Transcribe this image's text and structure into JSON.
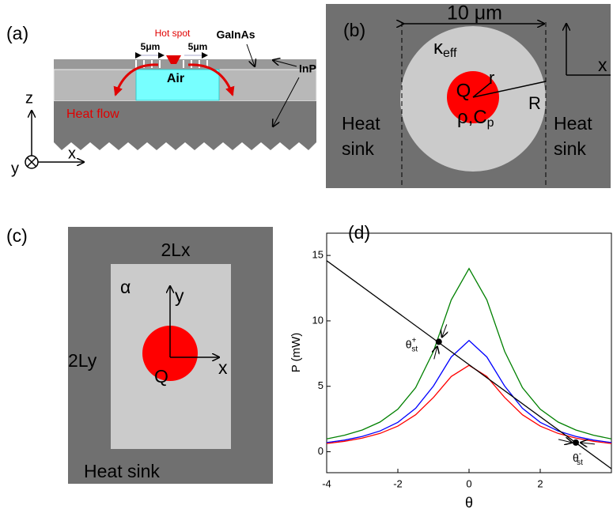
{
  "panel_a": {
    "label": "(a)",
    "hot_spot": "Hot spot",
    "layer_top": "GaInAs",
    "width_left": "5μm",
    "width_right": "5μm",
    "air": "Air",
    "substrate": "InP",
    "heat_flow": "Heat flow",
    "axis_z": "z",
    "axis_x": "x",
    "axis_y": "y"
  },
  "panel_b": {
    "label": "(b)",
    "width": "10 μm",
    "kappa": {
      "symbol": "κ",
      "sub": "eff"
    },
    "source": "Q",
    "radius_r": "r",
    "radius_R": "R",
    "rho": {
      "text": "ρ,C",
      "sub": "p"
    },
    "heat_sink_left": [
      "Heat",
      "sink"
    ],
    "heat_sink_right": [
      "Heat",
      "sink"
    ],
    "axis_x": "x"
  },
  "panel_c": {
    "label": "(c)",
    "width": "2Lx",
    "alpha": "α",
    "axis_y": "y",
    "axis_x": "x",
    "height": "2Ly",
    "source": "Q",
    "heat_sink": "Heat sink"
  },
  "chart_data": {
    "type": "line",
    "label": "(d)",
    "xlabel": "θ",
    "ylabel": "P (mW)",
    "xlim": [
      -4,
      4
    ],
    "ylim": [
      -1.6,
      16.7
    ],
    "xticks": [
      -4,
      -2,
      0,
      2
    ],
    "yticks": [
      0,
      5,
      10,
      15
    ],
    "x": [
      -4,
      -3.5,
      -3,
      -2.5,
      -2,
      -1.5,
      -1,
      -0.5,
      0,
      0.5,
      1,
      1.5,
      2,
      2.5,
      3,
      3.5,
      4
    ],
    "series": [
      {
        "color": "#008000",
        "values": [
          0.98,
          1.26,
          1.66,
          2.27,
          3.25,
          4.9,
          7.67,
          11.6,
          14,
          11.6,
          7.67,
          4.9,
          3.25,
          2.27,
          1.66,
          1.26,
          0.98
        ]
      },
      {
        "color": "#0000ff",
        "values": [
          0.7,
          0.89,
          1.17,
          1.59,
          2.25,
          3.32,
          5.02,
          7.24,
          8.5,
          7.24,
          5.02,
          3.32,
          2.25,
          1.59,
          1.17,
          0.89,
          0.7
        ]
      },
      {
        "color": "#ff0000",
        "values": [
          0.63,
          0.8,
          1.04,
          1.4,
          1.96,
          2.83,
          4.15,
          5.75,
          6.6,
          5.75,
          4.15,
          2.83,
          1.96,
          1.4,
          1.04,
          0.8,
          0.63
        ]
      }
    ],
    "line": {
      "color": "#000000",
      "x": [
        -4,
        4
      ],
      "values": [
        14.6,
        -1.3
      ]
    },
    "points": {
      "x": [
        -0.85,
        3
      ],
      "values": [
        8.4,
        0.7
      ],
      "labels": [
        {
          "text": "θ",
          "sup": "+",
          "sub": "st"
        },
        {
          "text": "θ",
          "sup": "-",
          "sub": "st"
        }
      ]
    }
  }
}
